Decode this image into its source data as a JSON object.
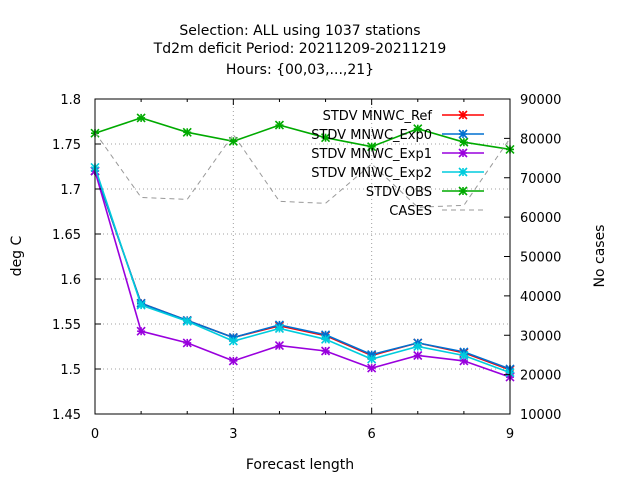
{
  "chart_data": {
    "type": "line",
    "title_lines": [
      "Selection: ALL using  1037 stations",
      "Td2m deficit   Period: 20211209-20211219",
      "Hours: {00,03,...,21}"
    ],
    "xlabel": "Forecast length",
    "ylabel": "deg C",
    "y2label": "No cases",
    "xlim": [
      0,
      9
    ],
    "ylim": [
      1.45,
      1.8
    ],
    "y2lim": [
      10000,
      90000
    ],
    "xticks": [
      "0",
      "3",
      "6",
      "9"
    ],
    "xtick_values": [
      0,
      3,
      6,
      9
    ],
    "yticks": [
      "1.45",
      "1.5",
      "1.55",
      "1.6",
      "1.65",
      "1.7",
      "1.75",
      "1.8"
    ],
    "ytick_values": [
      1.45,
      1.5,
      1.55,
      1.6,
      1.65,
      1.7,
      1.75,
      1.8
    ],
    "y2ticks": [
      "10000",
      "20000",
      "30000",
      "40000",
      "50000",
      "60000",
      "70000",
      "80000",
      "90000"
    ],
    "y2tick_values": [
      10000,
      20000,
      30000,
      40000,
      50000,
      60000,
      70000,
      80000,
      90000
    ],
    "grid": true,
    "legend_position": "top-right",
    "x": [
      0,
      1,
      2,
      3,
      4,
      5,
      6,
      7,
      8,
      9
    ],
    "series": [
      {
        "name": "STDV MNWC_Ref",
        "color": "#ff0000",
        "axis": "y1",
        "style": "line-points",
        "values": [
          1.72,
          1.573,
          1.554,
          1.535,
          1.548,
          1.537,
          1.515,
          1.529,
          1.518,
          1.499
        ]
      },
      {
        "name": "STDV MNWC_Exp0",
        "color": "#0070d0",
        "axis": "y1",
        "style": "line-points",
        "values": [
          1.72,
          1.573,
          1.554,
          1.535,
          1.549,
          1.538,
          1.516,
          1.529,
          1.519,
          1.5
        ]
      },
      {
        "name": "STDV MNWC_Exp1",
        "color": "#9900dd",
        "axis": "y1",
        "style": "line-points",
        "values": [
          1.72,
          1.542,
          1.529,
          1.509,
          1.526,
          1.52,
          1.501,
          1.515,
          1.509,
          1.491
        ]
      },
      {
        "name": "STDV MNWC_Exp2",
        "color": "#00ccdd",
        "axis": "y1",
        "style": "line-points",
        "values": [
          1.724,
          1.571,
          1.553,
          1.531,
          1.545,
          1.533,
          1.511,
          1.525,
          1.515,
          1.496
        ]
      },
      {
        "name": "STDV OBS",
        "color": "#00aa00",
        "axis": "y1",
        "style": "line-points",
        "values": [
          1.762,
          1.779,
          1.763,
          1.753,
          1.771,
          1.757,
          1.747,
          1.767,
          1.752,
          1.744
        ]
      },
      {
        "name": "CASES",
        "color": "#999999",
        "axis": "y2",
        "style": "dashed",
        "values": [
          81500,
          65000,
          64500,
          81000,
          64000,
          63500,
          73500,
          62500,
          63000,
          80000
        ]
      }
    ]
  }
}
